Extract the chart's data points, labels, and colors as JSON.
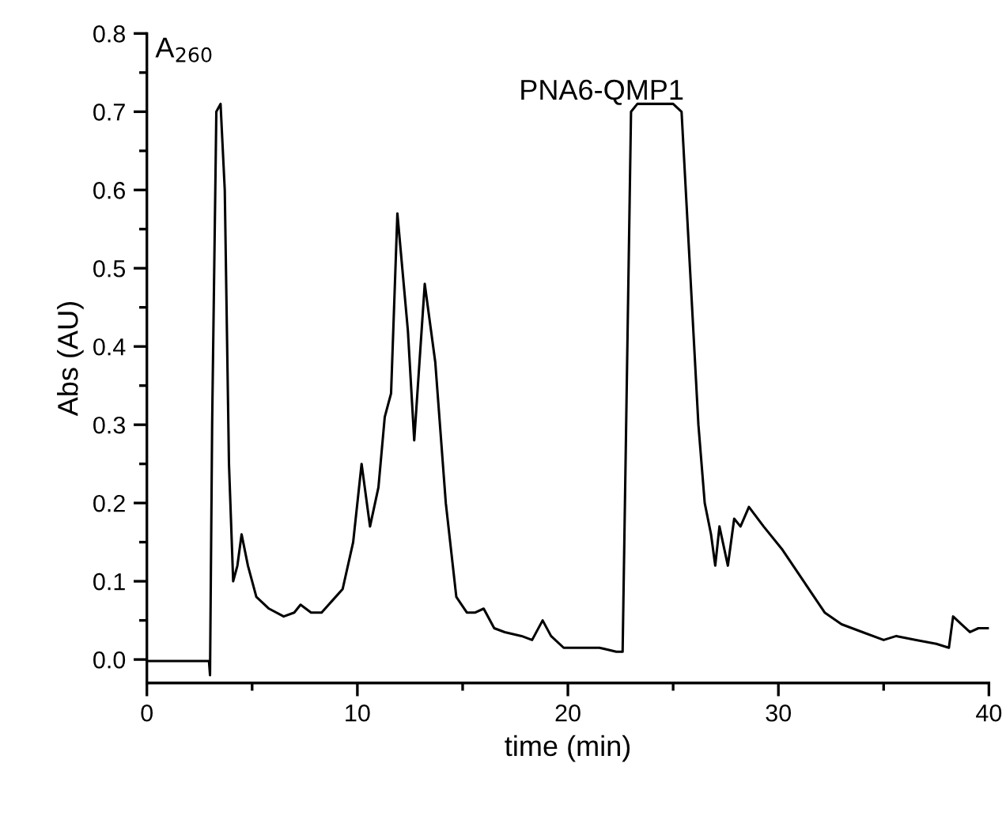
{
  "chart_data": {
    "type": "line",
    "xlabel": "time (min)",
    "ylabel": "Abs (AU)",
    "annotations": [
      "A$_{260}$",
      "PNA6-QMP1"
    ],
    "xlim": [
      0,
      40
    ],
    "ylim": [
      -0.03,
      0.8
    ],
    "xticks": [
      0,
      {
        "value": 5,
        "label": null
      },
      10,
      {
        "value": 15,
        "label": null
      },
      20,
      {
        "value": 25,
        "label": null
      },
      30,
      {
        "value": 35,
        "label": null
      },
      40
    ],
    "yticks": [
      {
        "value": 0,
        "label": "0.0"
      },
      {
        "value": 0.05,
        "label": null
      },
      0.1,
      {
        "value": 0.15,
        "label": null
      },
      0.2,
      {
        "value": 0.25,
        "label": null
      },
      0.3,
      {
        "value": 0.35,
        "label": null
      },
      0.4,
      {
        "value": 0.45,
        "label": null
      },
      0.5,
      {
        "value": 0.55,
        "label": null
      },
      0.6,
      {
        "value": 0.65,
        "label": null
      },
      0.7,
      {
        "value": 0.75,
        "label": null
      },
      0.8
    ],
    "grid": false,
    "legend": false,
    "marker": "none",
    "line_style": "solid",
    "series": [
      {
        "color": "#000000",
        "x": [
          0,
          1.5,
          2.95,
          3.0,
          3.1,
          3.3,
          3.5,
          3.7,
          3.9,
          4.1,
          4.3,
          4.5,
          4.8,
          5.2,
          5.8,
          6.5,
          7.0,
          7.3,
          7.8,
          8.3,
          8.8,
          9.3,
          9.8,
          10.2,
          10.6,
          11.0,
          11.3,
          11.6,
          11.9,
          12.4,
          12.7,
          13.2,
          13.7,
          14.2,
          14.7,
          15.2,
          15.6,
          16.0,
          16.5,
          17.0,
          17.8,
          18.3,
          18.8,
          19.2,
          19.8,
          20.5,
          21.5,
          22.3,
          22.6,
          23.0,
          23.3,
          24.0,
          25.0,
          25.4,
          25.8,
          26.2,
          26.5,
          26.8,
          27.0,
          27.2,
          27.6,
          27.9,
          28.2,
          28.6,
          29.3,
          30.2,
          31.2,
          32.2,
          33.0,
          34.0,
          35.0,
          35.6,
          36.5,
          37.5,
          38.1,
          38.3,
          38.7,
          39.1,
          39.5,
          40
        ],
        "values": [
          -0.002,
          -0.002,
          -0.002,
          -0.02,
          0.3,
          0.7,
          0.71,
          0.6,
          0.25,
          0.1,
          0.12,
          0.16,
          0.12,
          0.08,
          0.065,
          0.055,
          0.06,
          0.07,
          0.06,
          0.06,
          0.075,
          0.09,
          0.15,
          0.25,
          0.17,
          0.22,
          0.31,
          0.34,
          0.57,
          0.42,
          0.28,
          0.48,
          0.38,
          0.2,
          0.08,
          0.06,
          0.06,
          0.065,
          0.04,
          0.035,
          0.03,
          0.025,
          0.05,
          0.03,
          0.015,
          0.015,
          0.015,
          0.01,
          0.01,
          0.7,
          0.71,
          0.71,
          0.71,
          0.7,
          0.5,
          0.3,
          0.2,
          0.16,
          0.12,
          0.17,
          0.12,
          0.18,
          0.17,
          0.195,
          0.17,
          0.14,
          0.1,
          0.06,
          0.045,
          0.035,
          0.025,
          0.03,
          0.025,
          0.02,
          0.015,
          0.055,
          0.045,
          0.035,
          0.04,
          0.04
        ]
      }
    ]
  }
}
